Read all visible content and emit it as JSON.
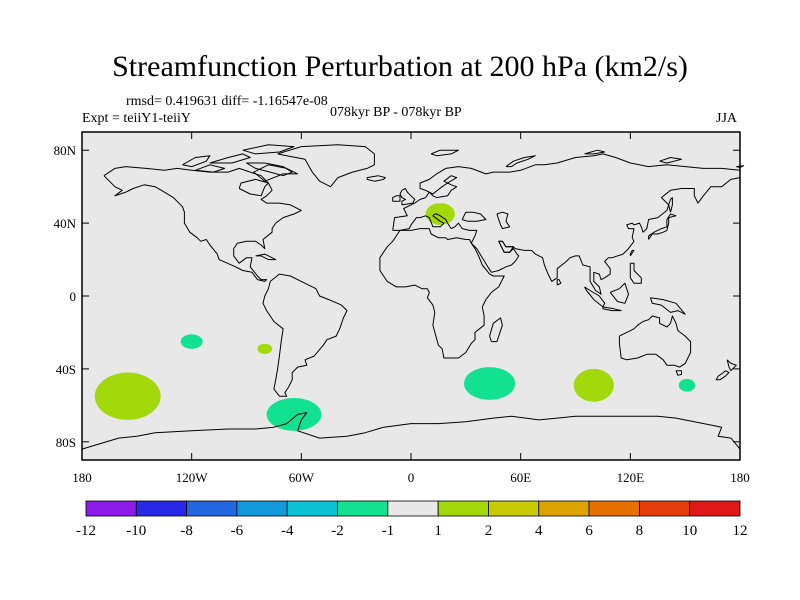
{
  "title": "Streamfunction Perturbation at 200 hPa (km2/s)",
  "stats_text": "rmsd= 0.419631 diff= -1.16547e-08",
  "experiment_text": "Expt = teiiY1-teiiY",
  "period_text": "078kyr BP - 078kyr BP",
  "season_text": "JJA",
  "map": {
    "lon_range": [
      -180,
      180
    ],
    "lat_range": [
      -90,
      90
    ],
    "background_color": "#e8e8e8",
    "lat_ticks": [
      {
        "value": 80,
        "label": "80N"
      },
      {
        "value": 40,
        "label": "40N"
      },
      {
        "value": 0,
        "label": "0"
      },
      {
        "value": -40,
        "label": "40S"
      },
      {
        "value": -80,
        "label": "80S"
      }
    ],
    "lon_ticks": [
      {
        "value": -180,
        "label": "180"
      },
      {
        "value": -120,
        "label": "120W"
      },
      {
        "value": -60,
        "label": "60W"
      },
      {
        "value": 0,
        "label": "0"
      },
      {
        "value": 60,
        "label": "60E"
      },
      {
        "value": 120,
        "label": "120E"
      },
      {
        "value": 180,
        "label": "180"
      }
    ],
    "anomalies": [
      {
        "id": "europe-positive",
        "lon": 16,
        "lat": 45,
        "rlon": 8,
        "rlat": 6,
        "color": "#a3d80a"
      },
      {
        "id": "south-pacific-positive",
        "lon": -155,
        "lat": -55,
        "rlon": 18,
        "rlat": 13,
        "color": "#a3d80a"
      },
      {
        "id": "pacific-small-positive",
        "lon": -80,
        "lat": -29,
        "rlon": 4,
        "rlat": 2.8,
        "color": "#a3d80a"
      },
      {
        "id": "indian-ocean-positive",
        "lon": 100,
        "lat": -49,
        "rlon": 11,
        "rlat": 9,
        "color": "#a3d80a"
      },
      {
        "id": "pacific-negative",
        "lon": -120,
        "lat": -25,
        "rlon": 6,
        "rlat": 4,
        "color": "#13e192"
      },
      {
        "id": "drake-passage-negative",
        "lon": -64,
        "lat": -65,
        "rlon": 15,
        "rlat": 9,
        "color": "#13e192"
      },
      {
        "id": "south-atlantic-negative",
        "lon": 43,
        "lat": -48,
        "rlon": 14,
        "rlat": 9,
        "color": "#13e192"
      },
      {
        "id": "australia-negative",
        "lon": 151,
        "lat": -49,
        "rlon": 4.5,
        "rlat": 3.5,
        "color": "#13e192"
      }
    ]
  },
  "colorbar": {
    "colors": [
      "#8c1ae8",
      "#2828e6",
      "#2368e0",
      "#1199d9",
      "#0cc3d3",
      "#13e192",
      "#e8e8e8",
      "#a3d80a",
      "#c9c904",
      "#dba200",
      "#e57000",
      "#e43c0a",
      "#e01818"
    ],
    "labels": [
      {
        "value": "-12",
        "boundary": 1
      },
      {
        "value": "-10",
        "boundary": 2
      },
      {
        "value": "-8",
        "boundary": 3
      },
      {
        "value": "-6",
        "boundary": 4
      },
      {
        "value": "-4",
        "boundary": 5
      },
      {
        "value": "-2",
        "boundary": 6
      },
      {
        "value": "-1",
        "boundary": 7
      },
      {
        "value": "1",
        "boundary": 8
      },
      {
        "value": "2",
        "boundary": 9
      },
      {
        "value": "4",
        "boundary": 10
      },
      {
        "value": "6",
        "boundary": 11
      },
      {
        "value": "8",
        "boundary": 12
      },
      {
        "value": "10",
        "boundary": 13
      },
      {
        "value": "12",
        "boundary": 14
      }
    ]
  }
}
